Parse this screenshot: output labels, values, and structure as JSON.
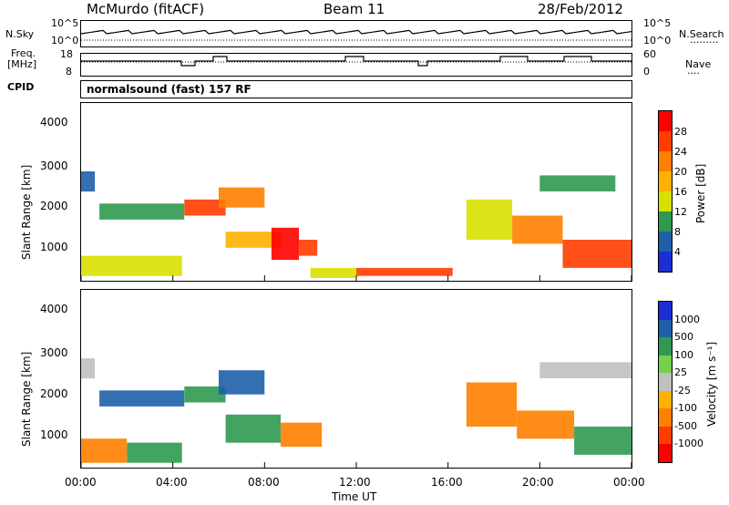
{
  "header": {
    "station": "McMurdo (fitACF)",
    "beam": "Beam 11",
    "date": "28/Feb/2012"
  },
  "sky_panel": {
    "left_label": "N.Sky",
    "right_label": "N.Search",
    "right_dots": "·········",
    "left_ticks": [
      "10^5",
      "10^0"
    ],
    "right_ticks": [
      "10^5",
      "10^0"
    ]
  },
  "freq_panel": {
    "left_label_1": "Freq.",
    "left_label_2": "[MHz]",
    "right_label": "Nave",
    "right_dots": "····",
    "left_ticks": [
      "18",
      "8"
    ],
    "right_ticks": [
      "60",
      "0"
    ]
  },
  "cpid": {
    "label": "CPID",
    "text": "normalsound (fast) 157 RF"
  },
  "power_panel": {
    "ylabel": "Slant Range [km]",
    "y_ticks": [
      "4000",
      "3000",
      "2000",
      "1000"
    ],
    "colorbar_label": "Power [dB]",
    "colorbar_ticks": [
      "28",
      "24",
      "20",
      "16",
      "12",
      "8",
      "4"
    ],
    "colorbar_colors": [
      "#ff0000",
      "#ff3d00",
      "#ff7f00",
      "#ffb000",
      "#d8e000",
      "#2f9950",
      "#1e5fa8",
      "#1a2fd8"
    ]
  },
  "velocity_panel": {
    "ylabel": "Slant Range [km]",
    "y_ticks": [
      "4000",
      "3000",
      "2000",
      "1000"
    ],
    "colorbar_label": "Velocity [m s⁻¹]",
    "colorbar_ticks": [
      "1000",
      "500",
      "100",
      "25",
      "-25",
      "-100",
      "-500",
      "-1000"
    ],
    "colorbar_colors": [
      "#1a2fd8",
      "#1e5fa8",
      "#2f9950",
      "#74d04a",
      "#c0c0c0",
      "#ffb000",
      "#ff7f00",
      "#ff3d00",
      "#ff0000"
    ]
  },
  "x_axis": {
    "ticks": [
      "00:00",
      "04:00",
      "08:00",
      "12:00",
      "16:00",
      "20:00",
      "00:00"
    ],
    "label": "Time UT"
  },
  "chart_data": {
    "type": "heatmap",
    "title": "McMurdo (fitACF) Beam 11 28/Feb/2012",
    "xlabel": "Time UT",
    "ylabel": "Slant Range [km]",
    "xlim_hours": [
      0,
      24
    ],
    "ylim_km": [
      180,
      4600
    ],
    "panels": [
      {
        "name": "Power",
        "unit": "dB",
        "range": [
          0,
          30
        ],
        "regions": [
          {
            "t0": 0.0,
            "t1": 4.4,
            "r0": 300,
            "r1": 800,
            "value": 12
          },
          {
            "t0": 0.0,
            "t1": 0.6,
            "r0": 2400,
            "r1": 2900,
            "value": 6
          },
          {
            "t0": 0.8,
            "t1": 4.5,
            "r0": 1700,
            "r1": 2100,
            "value": 8
          },
          {
            "t0": 4.5,
            "t1": 6.3,
            "r0": 1800,
            "r1": 2200,
            "value": 24
          },
          {
            "t0": 6.0,
            "t1": 8.0,
            "r0": 2000,
            "r1": 2500,
            "value": 22
          },
          {
            "t0": 6.3,
            "t1": 8.7,
            "r0": 1000,
            "r1": 1400,
            "value": 16
          },
          {
            "t0": 8.3,
            "t1": 9.5,
            "r0": 700,
            "r1": 1500,
            "value": 28
          },
          {
            "t0": 9.5,
            "t1": 10.3,
            "r0": 800,
            "r1": 1200,
            "value": 24
          },
          {
            "t0": 10.0,
            "t1": 12.0,
            "r0": 250,
            "r1": 500,
            "value": 14
          },
          {
            "t0": 12.0,
            "t1": 16.2,
            "r0": 300,
            "r1": 500,
            "value": 24
          },
          {
            "t0": 16.8,
            "t1": 18.8,
            "r0": 1200,
            "r1": 2200,
            "value": 14
          },
          {
            "t0": 18.8,
            "t1": 21.0,
            "r0": 1100,
            "r1": 1800,
            "value": 22
          },
          {
            "t0": 21.0,
            "t1": 24.0,
            "r0": 500,
            "r1": 1200,
            "value": 24
          },
          {
            "t0": 20.0,
            "t1": 23.3,
            "r0": 2400,
            "r1": 2800,
            "value": 10
          }
        ]
      },
      {
        "name": "Velocity",
        "unit": "m s-1",
        "range": [
          -1000,
          1000
        ],
        "regions": [
          {
            "t0": 0.0,
            "t1": 2.0,
            "r0": 300,
            "r1": 900,
            "value": -120
          },
          {
            "t0": 2.0,
            "t1": 4.4,
            "r0": 300,
            "r1": 800,
            "value": 120
          },
          {
            "t0": 0.0,
            "t1": 0.6,
            "r0": 2400,
            "r1": 2900,
            "value": 0
          },
          {
            "t0": 0.8,
            "t1": 4.5,
            "r0": 1700,
            "r1": 2100,
            "value": 600
          },
          {
            "t0": 4.5,
            "t1": 6.3,
            "r0": 1800,
            "r1": 2200,
            "value": 150
          },
          {
            "t0": 6.0,
            "t1": 8.0,
            "r0": 2000,
            "r1": 2600,
            "value": 700
          },
          {
            "t0": 6.3,
            "t1": 8.7,
            "r0": 800,
            "r1": 1500,
            "value": 150
          },
          {
            "t0": 8.7,
            "t1": 10.5,
            "r0": 700,
            "r1": 1300,
            "value": -200
          },
          {
            "t0": 16.8,
            "t1": 19.0,
            "r0": 1200,
            "r1": 2300,
            "value": -400
          },
          {
            "t0": 19.0,
            "t1": 21.5,
            "r0": 900,
            "r1": 1600,
            "value": -150
          },
          {
            "t0": 21.5,
            "t1": 24.0,
            "r0": 500,
            "r1": 1200,
            "value": 150
          },
          {
            "t0": 20.0,
            "t1": 24.0,
            "r0": 2400,
            "r1": 2800,
            "value": 0
          }
        ]
      }
    ]
  }
}
